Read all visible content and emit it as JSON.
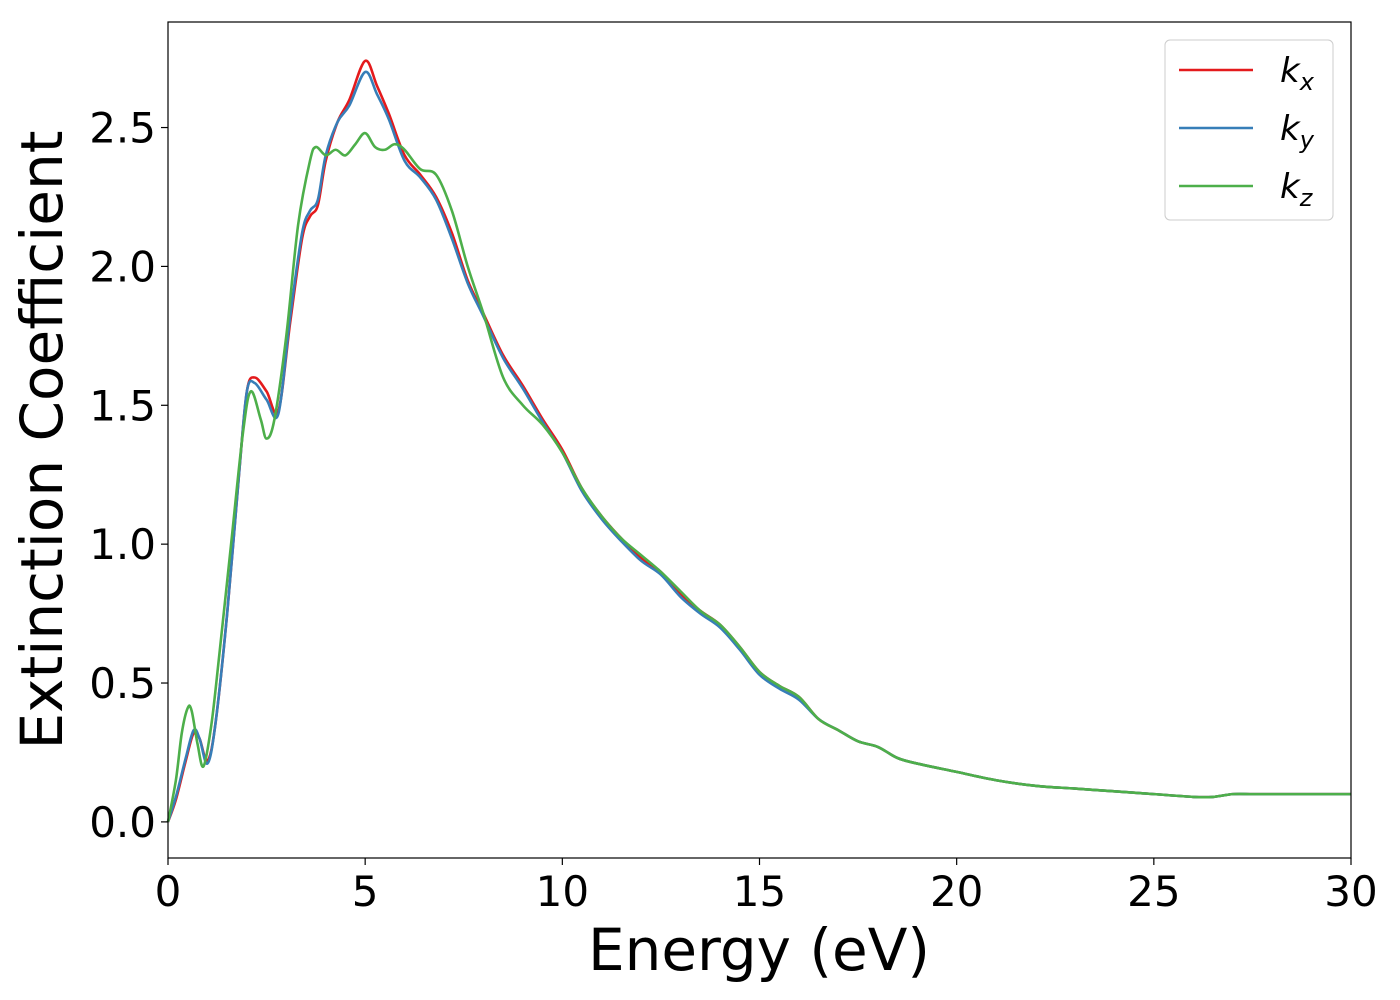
{
  "chart_data": {
    "type": "line",
    "xlabel": "Energy (eV)",
    "ylabel": "Extinction Coefficient",
    "xlim": [
      0,
      30
    ],
    "ylim": [
      -0.13,
      2.88
    ],
    "xticks": [
      "0",
      "5",
      "10",
      "15",
      "20",
      "25",
      "30"
    ],
    "yticks": [
      "0.0",
      "0.5",
      "1.0",
      "1.5",
      "2.0",
      "2.5"
    ],
    "grid": false,
    "legend_position": "top-right",
    "series": [
      {
        "name": "kx",
        "symbol": "k",
        "subscript": "x",
        "color": "#e41a1c",
        "x": [
          0,
          0.2,
          0.45,
          0.65,
          0.8,
          1.0,
          1.2,
          1.5,
          1.8,
          2.0,
          2.2,
          2.5,
          2.8,
          3.1,
          3.4,
          3.6,
          3.8,
          4.0,
          4.3,
          4.6,
          5.0,
          5.3,
          5.6,
          6.0,
          6.4,
          6.8,
          7.2,
          7.6,
          8.0,
          8.5,
          9.0,
          9.5,
          10.0,
          10.5,
          11.0,
          11.5,
          12.0,
          12.5,
          13.0,
          13.5,
          14.0,
          14.5,
          15.0,
          15.5,
          16.0,
          16.5,
          17.0,
          17.5,
          18.0,
          18.5,
          19.0,
          20.0,
          21.0,
          22.0,
          23.0,
          24.0,
          25.0,
          26.0,
          26.5,
          27.0,
          27.5,
          28.0,
          29.0,
          30.0
        ],
        "y": [
          0.0,
          0.08,
          0.22,
          0.32,
          0.3,
          0.22,
          0.35,
          0.75,
          1.25,
          1.55,
          1.6,
          1.55,
          1.48,
          1.8,
          2.1,
          2.18,
          2.22,
          2.38,
          2.52,
          2.6,
          2.74,
          2.65,
          2.55,
          2.4,
          2.33,
          2.25,
          2.12,
          1.95,
          1.83,
          1.68,
          1.57,
          1.45,
          1.34,
          1.2,
          1.1,
          1.02,
          0.95,
          0.9,
          0.82,
          0.76,
          0.71,
          0.63,
          0.54,
          0.49,
          0.45,
          0.37,
          0.33,
          0.29,
          0.27,
          0.23,
          0.21,
          0.18,
          0.15,
          0.13,
          0.12,
          0.11,
          0.1,
          0.09,
          0.09,
          0.1,
          0.1,
          0.1,
          0.1,
          0.1
        ]
      },
      {
        "name": "ky",
        "symbol": "k",
        "subscript": "y",
        "color": "#377eb8",
        "x": [
          0,
          0.2,
          0.45,
          0.65,
          0.8,
          1.0,
          1.2,
          1.5,
          1.8,
          2.0,
          2.2,
          2.5,
          2.8,
          3.1,
          3.4,
          3.6,
          3.8,
          4.0,
          4.3,
          4.6,
          5.0,
          5.3,
          5.6,
          6.0,
          6.4,
          6.8,
          7.2,
          7.6,
          8.0,
          8.5,
          9.0,
          9.5,
          10.0,
          10.5,
          11.0,
          11.5,
          12.0,
          12.5,
          13.0,
          13.5,
          14.0,
          14.5,
          15.0,
          15.5,
          16.0,
          16.5,
          17.0,
          17.5,
          18.0,
          18.5,
          19.0,
          20.0,
          21.0,
          22.0,
          23.0,
          24.0,
          25.0,
          26.0,
          26.5,
          27.0,
          27.5,
          28.0,
          29.0,
          30.0
        ],
        "y": [
          0.0,
          0.09,
          0.23,
          0.33,
          0.3,
          0.21,
          0.35,
          0.75,
          1.25,
          1.55,
          1.58,
          1.52,
          1.47,
          1.82,
          2.12,
          2.2,
          2.24,
          2.4,
          2.52,
          2.58,
          2.7,
          2.62,
          2.53,
          2.38,
          2.32,
          2.24,
          2.1,
          1.94,
          1.82,
          1.67,
          1.56,
          1.44,
          1.33,
          1.19,
          1.09,
          1.01,
          0.94,
          0.89,
          0.81,
          0.75,
          0.7,
          0.62,
          0.53,
          0.48,
          0.44,
          0.37,
          0.33,
          0.29,
          0.27,
          0.23,
          0.21,
          0.18,
          0.15,
          0.13,
          0.12,
          0.11,
          0.1,
          0.09,
          0.09,
          0.1,
          0.1,
          0.1,
          0.1,
          0.1
        ]
      },
      {
        "name": "kz",
        "symbol": "k",
        "subscript": "z",
        "color": "#4daf4a",
        "x": [
          0,
          0.2,
          0.35,
          0.5,
          0.6,
          0.75,
          0.9,
          1.1,
          1.3,
          1.6,
          1.9,
          2.1,
          2.35,
          2.5,
          2.7,
          3.0,
          3.3,
          3.6,
          3.75,
          4.0,
          4.25,
          4.5,
          4.75,
          5.0,
          5.25,
          5.5,
          5.75,
          6.0,
          6.4,
          6.8,
          7.2,
          7.6,
          8.0,
          8.5,
          9.0,
          9.5,
          10.0,
          10.5,
          11.0,
          11.5,
          12.0,
          12.5,
          13.0,
          13.5,
          14.0,
          14.5,
          15.0,
          15.5,
          16.0,
          16.5,
          17.0,
          17.5,
          18.0,
          18.5,
          19.0,
          20.0,
          21.0,
          22.0,
          23.0,
          24.0,
          25.0,
          26.0,
          26.5,
          27.0,
          27.5,
          28.0,
          29.0,
          30.0
        ],
        "y": [
          0.0,
          0.15,
          0.32,
          0.41,
          0.4,
          0.28,
          0.2,
          0.35,
          0.6,
          1.0,
          1.4,
          1.55,
          1.45,
          1.38,
          1.45,
          1.75,
          2.15,
          2.38,
          2.43,
          2.4,
          2.42,
          2.4,
          2.44,
          2.48,
          2.43,
          2.42,
          2.44,
          2.42,
          2.35,
          2.33,
          2.2,
          2.0,
          1.83,
          1.6,
          1.5,
          1.43,
          1.33,
          1.2,
          1.1,
          1.02,
          0.96,
          0.9,
          0.83,
          0.76,
          0.71,
          0.63,
          0.54,
          0.49,
          0.45,
          0.37,
          0.33,
          0.29,
          0.27,
          0.23,
          0.21,
          0.18,
          0.15,
          0.13,
          0.12,
          0.11,
          0.1,
          0.09,
          0.09,
          0.1,
          0.1,
          0.1,
          0.1,
          0.1
        ]
      }
    ]
  }
}
